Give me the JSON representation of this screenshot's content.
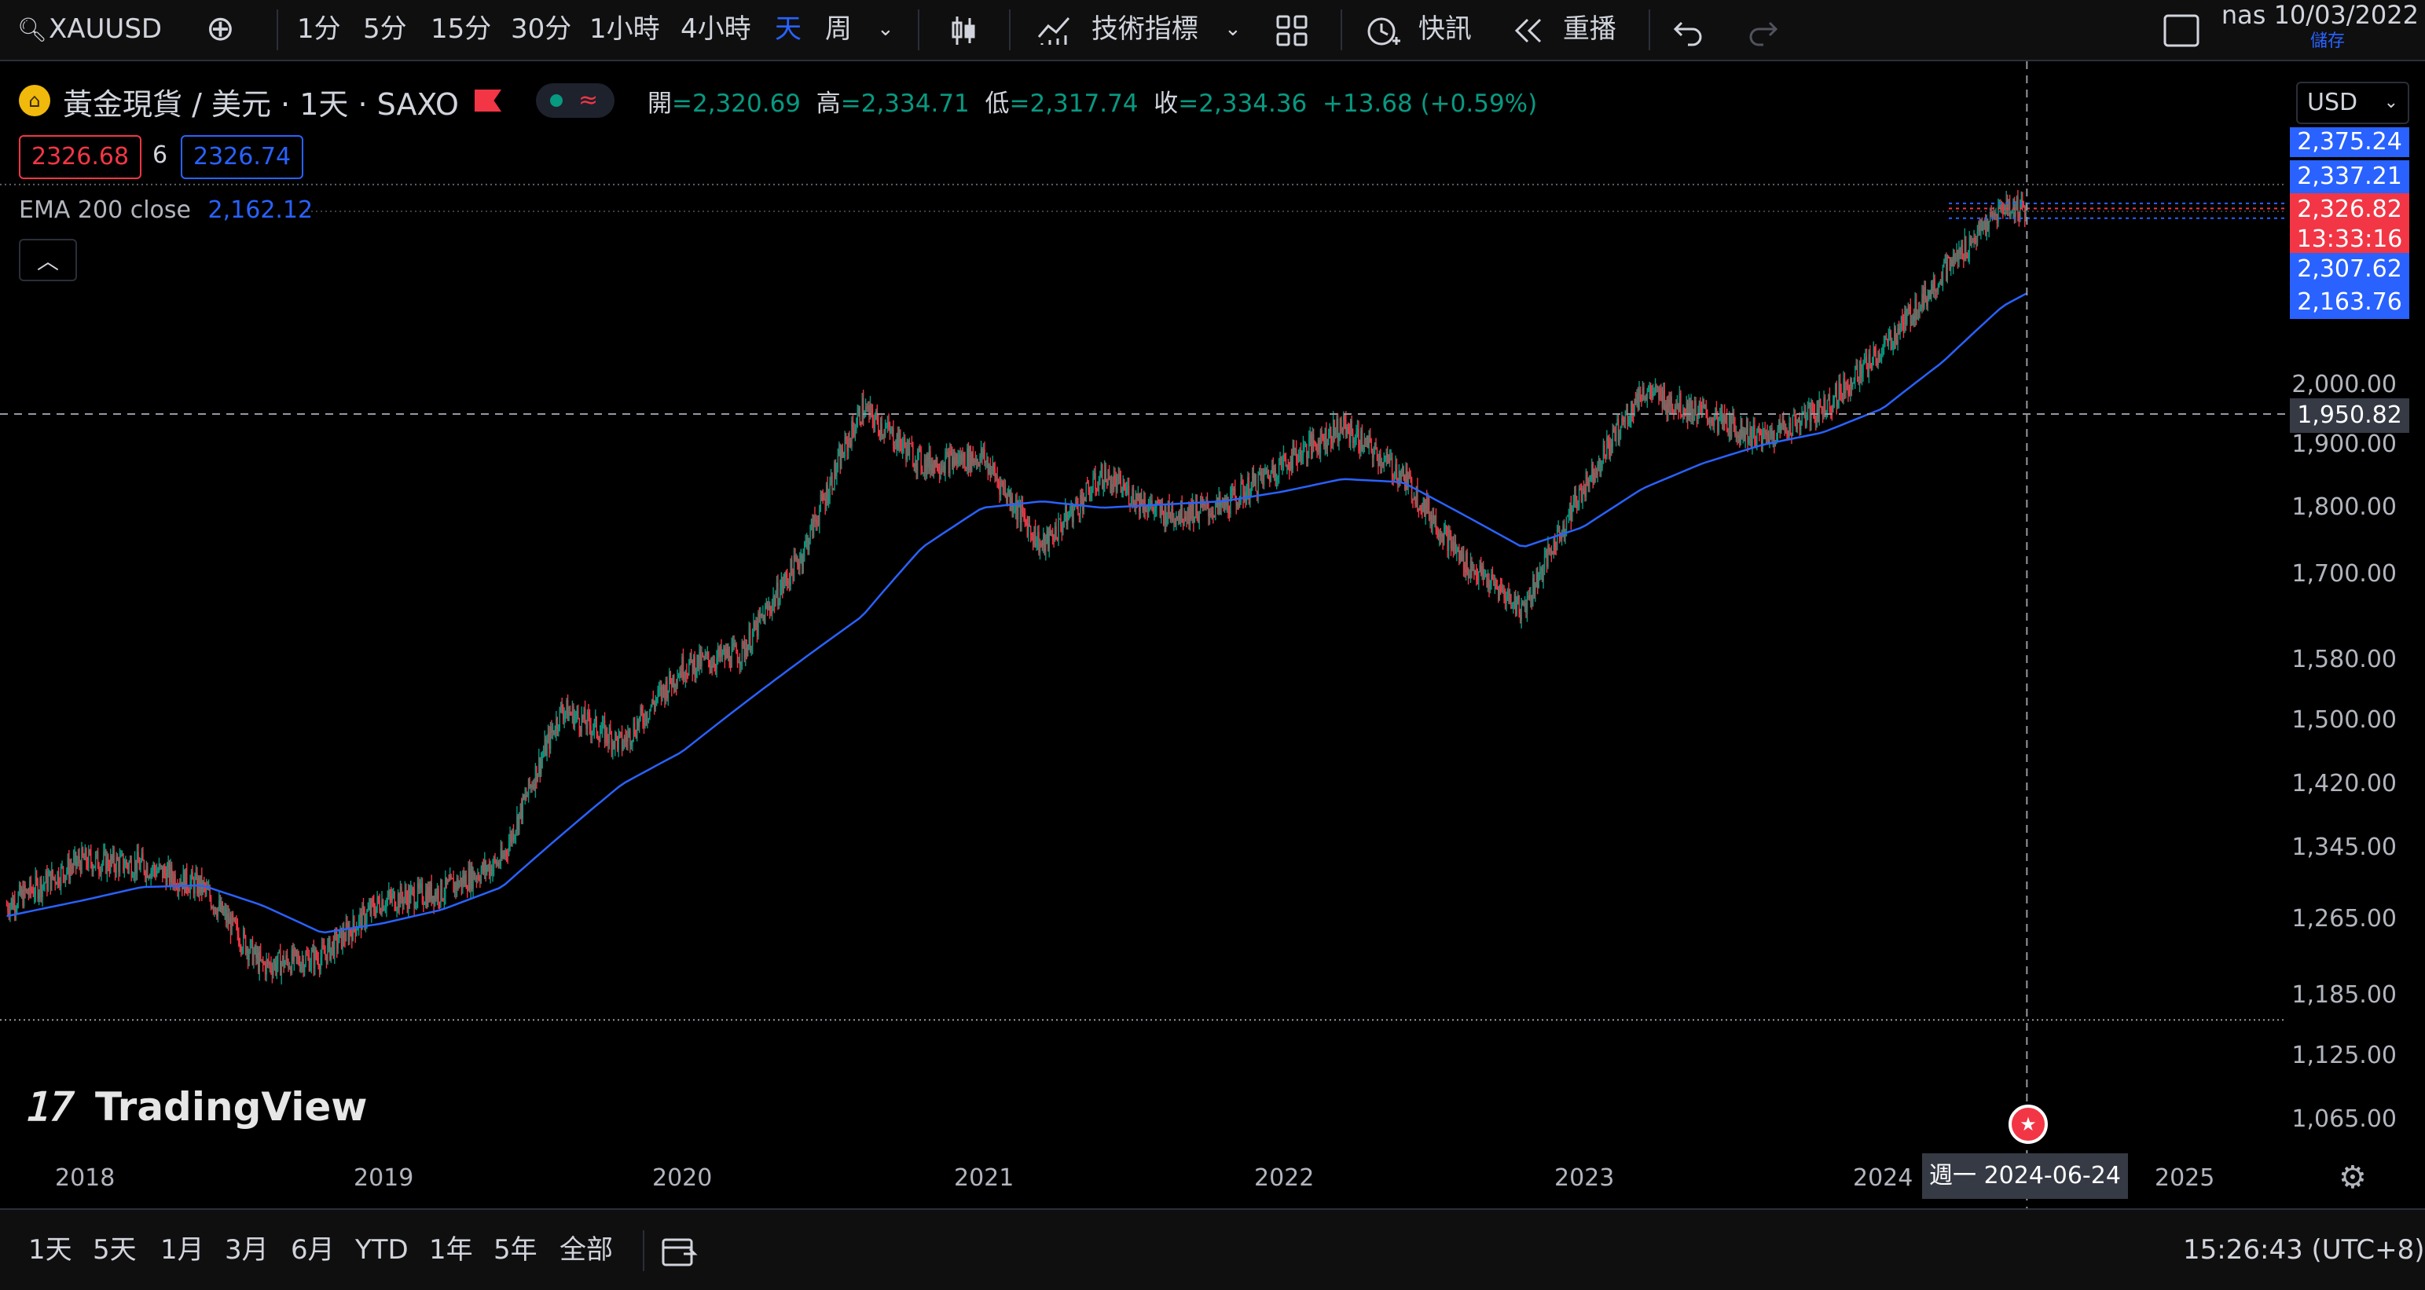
{
  "toolbar": {
    "symbol": "XAUUSD",
    "intervals": [
      "1分",
      "5分",
      "15分",
      "30分",
      "1小時",
      "4小時",
      "天",
      "周"
    ],
    "active_interval": "天",
    "indicators_label": "技術指標",
    "alerts_label": "快訊",
    "replay_label": "重播",
    "layout_name": "nas 10/03/2022",
    "save_label": "儲存"
  },
  "legend": {
    "title": "黃金現貨 / 美元 · 1天 · SAXO",
    "open_k": "開",
    "open_v": "2,320.69",
    "high_k": "高",
    "high_v": "2,334.71",
    "low_k": "低",
    "low_v": "2,317.74",
    "close_k": "收",
    "close_v": "2,334.36",
    "change": "+13.68 (+0.59%)",
    "bid": "2326.68",
    "spread": "6",
    "ask": "2326.74",
    "ema_name": "EMA 200 close",
    "ema_value": "2,162.12"
  },
  "price_axis": {
    "currency": "USD",
    "labels": [
      "2,000.00",
      "1,900.00",
      "1,800.00",
      "1,700.00",
      "1,580.00",
      "1,500.00",
      "1,420.00",
      "1,345.00",
      "1,265.00",
      "1,185.00",
      "1,125.00",
      "1,065.00"
    ],
    "tags": {
      "high": "2,375.24",
      "t1": "2,337.21",
      "last": "2,326.82",
      "countdown": "13:33:16",
      "t2": "2,307.62",
      "ema": "2,163.76",
      "crosshair": "1,950.82"
    }
  },
  "time_axis": {
    "years": [
      "2018",
      "2019",
      "2020",
      "2021",
      "2022",
      "2023",
      "2024",
      "2025"
    ],
    "crosshair_date": "週一 2024-06-24"
  },
  "bottom": {
    "ranges": [
      "1天",
      "5天",
      "1月",
      "3月",
      "6月",
      "YTD",
      "1年",
      "5年",
      "全部"
    ],
    "clock": "15:26:43 (UTC+8)"
  },
  "watermark": "TradingView",
  "colors": {
    "up": "#089981",
    "down": "#f23645",
    "ema": "#2962ff",
    "accent": "#2962ff"
  },
  "chart_data": {
    "type": "line",
    "title": "黃金現貨 / 美元 · 1天 · SAXO",
    "xlabel": "",
    "ylabel": "USD",
    "ylim": [
      1040,
      2390
    ],
    "x": [
      2017.75,
      2018.0,
      2018.2,
      2018.4,
      2018.6,
      2018.8,
      2019.0,
      2019.2,
      2019.4,
      2019.6,
      2019.8,
      2020.0,
      2020.2,
      2020.4,
      2020.6,
      2020.8,
      2021.0,
      2021.2,
      2021.4,
      2021.6,
      2021.8,
      2022.0,
      2022.2,
      2022.4,
      2022.6,
      2022.8,
      2023.0,
      2023.2,
      2023.4,
      2023.6,
      2023.8,
      2024.0,
      2024.2,
      2024.4,
      2024.48
    ],
    "series": [
      {
        "name": "XAUUSD close",
        "values": [
          1280,
          1330,
          1325,
          1300,
          1215,
          1225,
          1285,
          1295,
          1330,
          1515,
          1470,
          1570,
          1590,
          1730,
          1960,
          1870,
          1880,
          1740,
          1850,
          1790,
          1800,
          1870,
          1930,
          1850,
          1720,
          1650,
          1830,
          1990,
          1950,
          1910,
          1960,
          2060,
          2200,
          2330,
          2326.82
        ]
      },
      {
        "name": "EMA 200 close",
        "values": [
          1268,
          1285,
          1300,
          1302,
          1280,
          1250,
          1260,
          1275,
          1300,
          1360,
          1420,
          1460,
          1520,
          1580,
          1640,
          1740,
          1800,
          1810,
          1800,
          1805,
          1810,
          1825,
          1845,
          1840,
          1790,
          1740,
          1770,
          1830,
          1870,
          1900,
          1920,
          1960,
          2040,
          2140,
          2163.76
        ]
      }
    ],
    "hlines": {
      "crosshair": 1950.82,
      "session_low": 1160,
      "high": 2375.24
    }
  }
}
